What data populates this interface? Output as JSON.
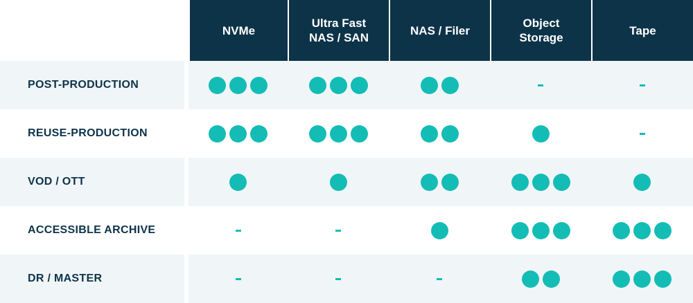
{
  "columns": [
    "NVMe",
    "Ultra Fast\nNAS / SAN",
    "NAS / Filer",
    "Object\nStorage",
    "Tape"
  ],
  "rows": [
    {
      "label": "POST-PRODUCTION",
      "ratings": [
        3,
        3,
        2,
        0,
        0
      ]
    },
    {
      "label": "REUSE-PRODUCTION",
      "ratings": [
        3,
        3,
        2,
        1,
        0
      ]
    },
    {
      "label": "VOD / OTT",
      "ratings": [
        1,
        1,
        2,
        3,
        1
      ]
    },
    {
      "label": "ACCESSIBLE ARCHIVE",
      "ratings": [
        0,
        0,
        1,
        3,
        3
      ]
    },
    {
      "label": "DR / MASTER",
      "ratings": [
        0,
        0,
        0,
        2,
        3
      ]
    }
  ],
  "legend": {
    "zero_symbol": "-"
  },
  "colors": {
    "header_bg": "#0d3349",
    "dot": "#13bdb5",
    "row_shade": "#f0f5f8",
    "label_text": "#0d3349"
  }
}
